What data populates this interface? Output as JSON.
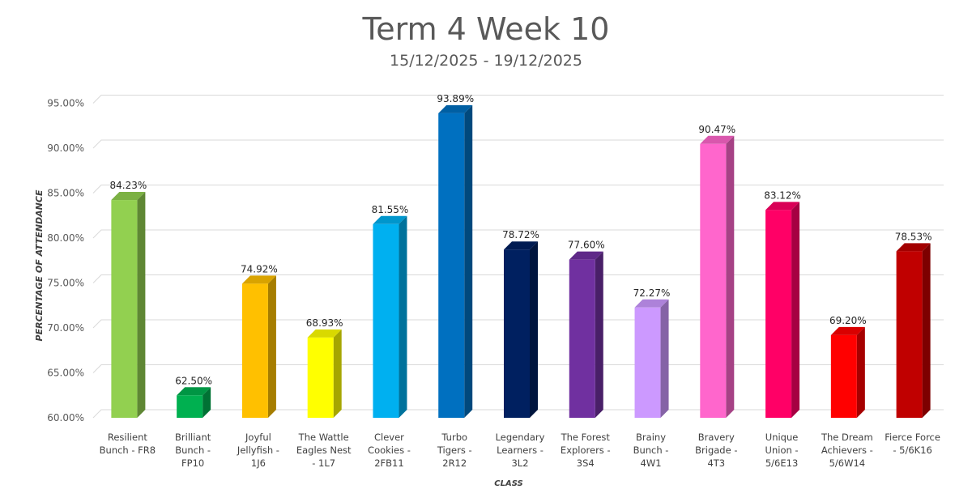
{
  "chart_data": {
    "type": "bar",
    "title": "Term 4 Week 10",
    "subtitle": "15/12/2025 - 19/12/2025",
    "xlabel": "CLASS",
    "ylabel": "PERCENTAGE OF ATTENDANCE",
    "ylim": [
      60,
      97
    ],
    "yticks": [
      60,
      65,
      70,
      75,
      80,
      85,
      90,
      95
    ],
    "ytick_labels": [
      "60.00%",
      "65.00%",
      "70.00%",
      "75.00%",
      "80.00%",
      "85.00%",
      "90.00%",
      "95.00%"
    ],
    "grid": true,
    "categories": [
      [
        "Resilient",
        "Bunch - FR8"
      ],
      [
        "Brilliant",
        "Bunch -",
        "FP10"
      ],
      [
        "Joyful",
        "Jellyfish -",
        "1J6"
      ],
      [
        "The Wattle",
        "Eagles Nest",
        "- 1L7"
      ],
      [
        "Clever",
        "Cookies -",
        "2FB11"
      ],
      [
        "Turbo",
        "Tigers -",
        "2R12"
      ],
      [
        "Legendary",
        "Learners -",
        "3L2"
      ],
      [
        "The Forest",
        "Explorers -",
        "3S4"
      ],
      [
        "Brainy",
        "Bunch -",
        "4W1"
      ],
      [
        "Bravery",
        "Brigade -",
        "4T3"
      ],
      [
        "Unique",
        "Union -",
        "5/6E13"
      ],
      [
        "The Dream",
        "Achievers -",
        "5/6W14"
      ],
      [
        "Fierce Force",
        "- 5/6K16"
      ]
    ],
    "values": [
      84.23,
      62.5,
      74.92,
      68.93,
      81.55,
      93.89,
      78.72,
      77.6,
      72.27,
      90.47,
      83.12,
      69.2,
      78.53
    ],
    "value_labels": [
      "84.23%",
      "62.50%",
      "74.92%",
      "68.93%",
      "81.55%",
      "93.89%",
      "78.72%",
      "77.60%",
      "72.27%",
      "90.47%",
      "83.12%",
      "69.20%",
      "78.53%"
    ],
    "colors": [
      "#92D050",
      "#00B050",
      "#FFC000",
      "#FFFF00",
      "#00B0F0",
      "#0070C0",
      "#002060",
      "#7030A0",
      "#CC99FF",
      "#FF66CC",
      "#FF0066",
      "#FF0000",
      "#C00000"
    ]
  }
}
